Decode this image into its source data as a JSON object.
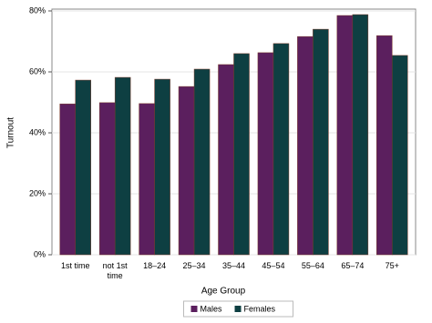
{
  "chart_data": {
    "type": "bar",
    "x_label": "Age Group",
    "y_label": "Turnout",
    "categories": [
      "1st time",
      "not 1st time",
      "18–24",
      "25–34",
      "35–44",
      "45–54",
      "55–64",
      "65–74",
      "75+"
    ],
    "series": [
      {
        "name": "Males",
        "color": "#5b1f5e",
        "values": [
          49.5,
          49.9,
          49.6,
          55.2,
          62.4,
          66.3,
          71.6,
          78.5,
          71.9
        ]
      },
      {
        "name": "Females",
        "color": "#0e3f42",
        "values": [
          57.3,
          58.2,
          57.6,
          60.9,
          66.0,
          69.3,
          74.0,
          78.8,
          65.4
        ]
      }
    ],
    "ylim": [
      0,
      80
    ],
    "yticks": [
      {
        "value": 0,
        "label": "0%"
      },
      {
        "value": 20,
        "label": "20%"
      },
      {
        "value": 40,
        "label": "40%"
      },
      {
        "value": 60,
        "label": "60%"
      },
      {
        "value": 80,
        "label": "80%"
      }
    ],
    "grid": true,
    "legend": "bottom"
  }
}
